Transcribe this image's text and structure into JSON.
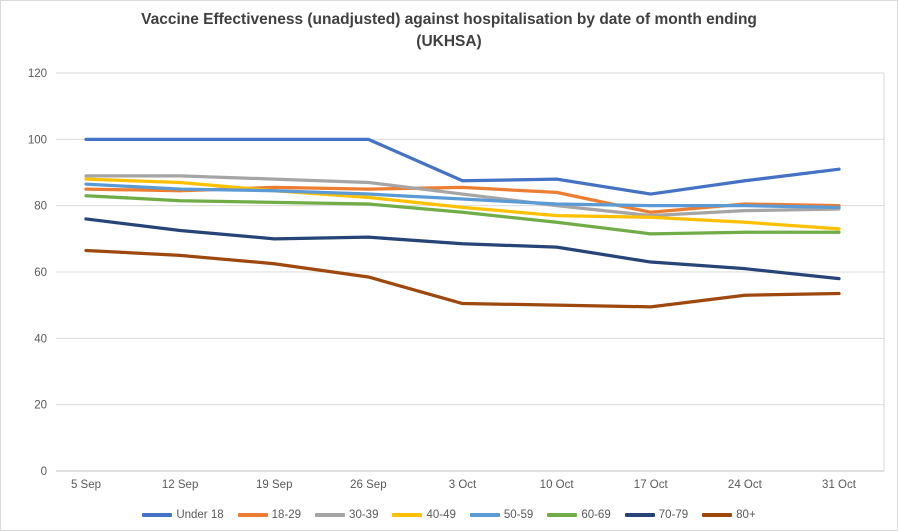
{
  "chart_data": {
    "type": "line",
    "title": "Vaccine Effectiveness (unadjusted) against hospitalisation by date of month ending (UKHSA)",
    "title_lines": [
      "Vaccine Effectiveness (unadjusted) against hospitalisation by date of month ending",
      "(UKHSA)"
    ],
    "xlabel": "",
    "ylabel": "",
    "categories": [
      "5 Sep",
      "12 Sep",
      "19 Sep",
      "26 Sep",
      "3 Oct",
      "10 Oct",
      "17 Oct",
      "24 Oct",
      "31 Oct"
    ],
    "yticks": [
      0,
      20,
      40,
      60,
      80,
      100,
      120
    ],
    "ylim": [
      0,
      120
    ],
    "grid": true,
    "legend_position": "bottom",
    "series": [
      {
        "name": "Under 18",
        "color": "#4472C4",
        "values": [
          100,
          100,
          100,
          100,
          87.5,
          88,
          83.5,
          87.5,
          91
        ]
      },
      {
        "name": "18-29",
        "color": "#ED7D31",
        "values": [
          85,
          84.5,
          85.5,
          85,
          85.5,
          84,
          78,
          80.5,
          80
        ]
      },
      {
        "name": "30-39",
        "color": "#A5A5A5",
        "values": [
          89,
          89,
          88,
          87,
          83.5,
          80,
          77,
          78.5,
          79
        ]
      },
      {
        "name": "40-49",
        "color": "#FFC000",
        "values": [
          88,
          87,
          84.5,
          82.5,
          79.5,
          77,
          76.5,
          75,
          73
        ]
      },
      {
        "name": "50-59",
        "color": "#5B9BD5",
        "values": [
          86.5,
          85,
          84.5,
          83.5,
          82,
          80.5,
          80,
          80,
          79.5
        ]
      },
      {
        "name": "60-69",
        "color": "#70AD47",
        "values": [
          83,
          81.5,
          81,
          80.5,
          78,
          75,
          71.5,
          72,
          72
        ]
      },
      {
        "name": "70-79",
        "color": "#264478",
        "values": [
          76,
          72.5,
          70,
          70.5,
          68.5,
          67.5,
          63,
          61,
          58
        ]
      },
      {
        "name": "80+",
        "color": "#9E480E",
        "values": [
          66.5,
          65,
          62.5,
          58.5,
          50.5,
          50,
          49.5,
          53,
          53.5
        ]
      }
    ]
  },
  "style": {
    "background": "#FFFFFF",
    "border_color": "#D9D9D9",
    "grid_color": "#D9D9D9",
    "axis_color": "#BFBFBF",
    "tick_label_color": "#595959",
    "title_color": "#404040"
  }
}
